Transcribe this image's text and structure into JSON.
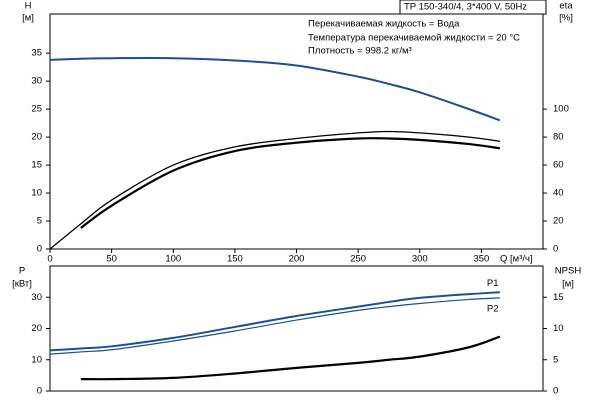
{
  "chart_data": [
    {
      "type": "line",
      "title": "TP 150-340/4, 3*400 V, 50Hz",
      "annotations": [
        "Перекачиваемая жидкость = Вода",
        "Температура перекачиваемой жидкости = 20 °C",
        "Плотность = 998.2 кг/м³"
      ],
      "ylabel": "H",
      "ylabel_unit": "[м]",
      "y2label": "eta",
      "y2label_unit": "[%]",
      "xlabel": "Q [м³/ч]",
      "x": [
        0,
        25,
        50,
        100,
        150,
        200,
        250,
        275,
        300,
        340,
        365
      ],
      "xlim": [
        0,
        400
      ],
      "xticks": [
        0,
        50,
        100,
        150,
        200,
        250,
        300,
        350
      ],
      "ylim": [
        0,
        42
      ],
      "yticks": [
        0,
        5,
        10,
        15,
        20,
        25,
        30,
        35
      ],
      "y2lim": [
        0,
        168
      ],
      "y2ticks": [
        0,
        20,
        40,
        60,
        80,
        100
      ],
      "series": [
        {
          "color": "#1f4e8c",
          "width": 2,
          "values": [
            33.8,
            34.0,
            34.1,
            34.1,
            33.7,
            32.8,
            30.8,
            29.5,
            28.0,
            25.0,
            23.0
          ]
        },
        {
          "color": "#000000",
          "width": 1.3,
          "axis": "y2",
          "values": [
            0,
            18,
            35,
            60,
            73,
            79,
            83,
            84,
            83,
            80,
            77
          ]
        },
        {
          "color": "#000000",
          "width": 2.2,
          "axis": "y2",
          "values": [
            null,
            15,
            31,
            56,
            70,
            76,
            79,
            79,
            78,
            75,
            72
          ]
        }
      ]
    },
    {
      "type": "line",
      "ylabel": "P",
      "ylabel_unit": "[кВт]",
      "y2label": "NPSH",
      "y2label_unit": "[м]",
      "x": [
        0,
        25,
        50,
        100,
        150,
        200,
        250,
        275,
        300,
        340,
        365
      ],
      "xlim": [
        0,
        400
      ],
      "ylim": [
        0,
        40
      ],
      "yticks": [
        0,
        10,
        20,
        30
      ],
      "y2lim": [
        0,
        20
      ],
      "y2ticks": [
        0,
        5,
        10,
        15
      ],
      "series": [
        {
          "name": "P1",
          "color": "#1f4e8c",
          "width": 2,
          "values": [
            13,
            13.6,
            14.3,
            17,
            20.5,
            24,
            27,
            28.5,
            29.8,
            31,
            31.6
          ]
        },
        {
          "name": "P2",
          "color": "#1f4e8c",
          "width": 1.2,
          "values": [
            11.8,
            12.5,
            13.2,
            16,
            19.2,
            22.7,
            25.8,
            27,
            28,
            29.3,
            29.8
          ]
        },
        {
          "color": "#000000",
          "width": 2.2,
          "axis": "y2",
          "values": [
            null,
            1.9,
            1.9,
            2.1,
            2.8,
            3.7,
            4.5,
            5,
            5.5,
            7,
            8.7
          ]
        }
      ]
    }
  ]
}
